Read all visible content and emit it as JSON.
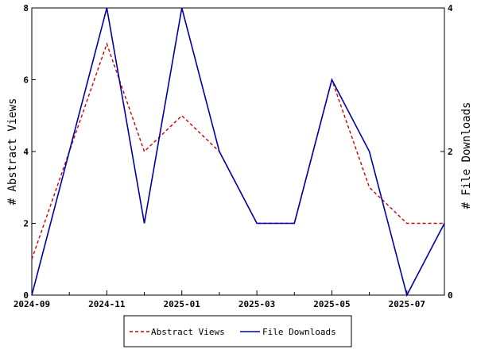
{
  "chart_data": {
    "type": "line",
    "x": [
      "2024-09",
      "2024-10",
      "2024-11",
      "2024-12",
      "2025-01",
      "2025-02",
      "2025-03",
      "2025-04",
      "2025-05",
      "2025-06",
      "2025-07",
      "2025-08"
    ],
    "x_tick_labels": [
      "2024-09",
      "2024-11",
      "2025-01",
      "2025-03",
      "2025-05",
      "2025-07"
    ],
    "ylabel": "# Abstract Views",
    "y2label": "# File Downloads",
    "ylim": [
      0,
      8
    ],
    "y2lim": [
      0,
      4
    ],
    "y_ticks": [
      0,
      2,
      4,
      6,
      8
    ],
    "y2_ticks": [
      0,
      2,
      4
    ],
    "grid": false,
    "legend_position": "bottom",
    "series": [
      {
        "name": "Abstract Views",
        "axis": "left",
        "color": "#cc0000",
        "style": "dashed",
        "values": [
          1,
          4,
          7,
          4,
          5,
          4,
          2,
          2,
          6,
          3,
          2,
          2
        ]
      },
      {
        "name": "File Downloads",
        "axis": "right",
        "color": "#0000aa",
        "style": "solid",
        "values": [
          0,
          2,
          4,
          1,
          4,
          2,
          1,
          1,
          3,
          2,
          0,
          1
        ]
      }
    ]
  }
}
